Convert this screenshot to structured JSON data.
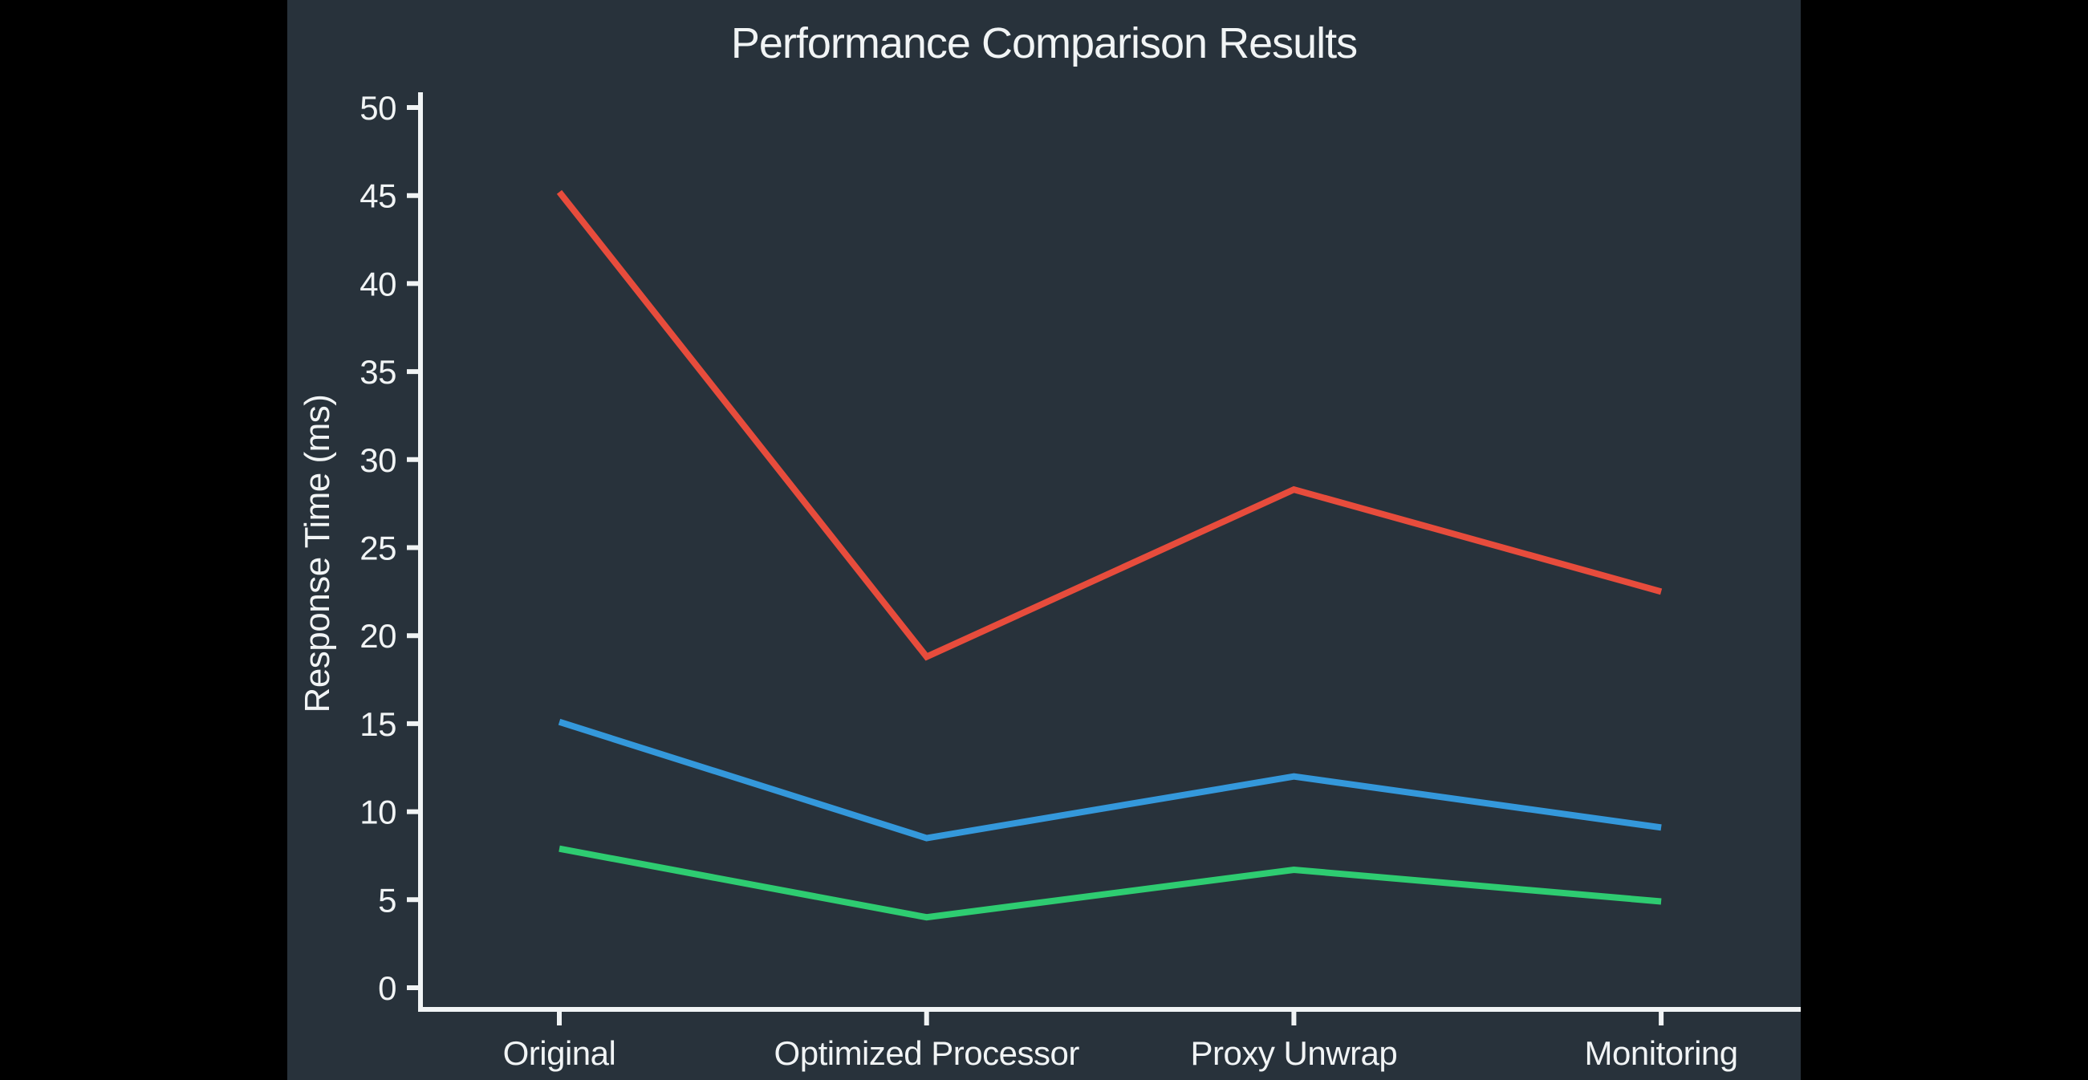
{
  "chart_data": {
    "type": "line",
    "title": "Performance Comparison Results",
    "ylabel": "Response Time (ms)",
    "xlabel": "",
    "categories": [
      "Original",
      "Optimized Processor",
      "Proxy Unwrap",
      "Monitoring"
    ],
    "series": [
      {
        "color": "#e74c3c",
        "values": [
          45.2,
          18.8,
          28.3,
          22.5
        ]
      },
      {
        "color": "#3498db",
        "values": [
          15.1,
          8.5,
          12.0,
          9.1
        ]
      },
      {
        "color": "#2ecc71",
        "values": [
          7.9,
          4.0,
          6.7,
          4.9
        ]
      }
    ],
    "ylim": [
      0,
      50
    ],
    "ytick_step": 5,
    "ytick_labels": [
      "0",
      "5",
      "10",
      "15",
      "20",
      "25",
      "30",
      "35",
      "40",
      "45",
      "50"
    ],
    "grid": false,
    "legend": "none",
    "styles": {
      "figure_background": "#28323b",
      "letterbox_color": "#000000",
      "axis_color": "#f1f4f5",
      "text_color": "#f1f4f5"
    }
  }
}
